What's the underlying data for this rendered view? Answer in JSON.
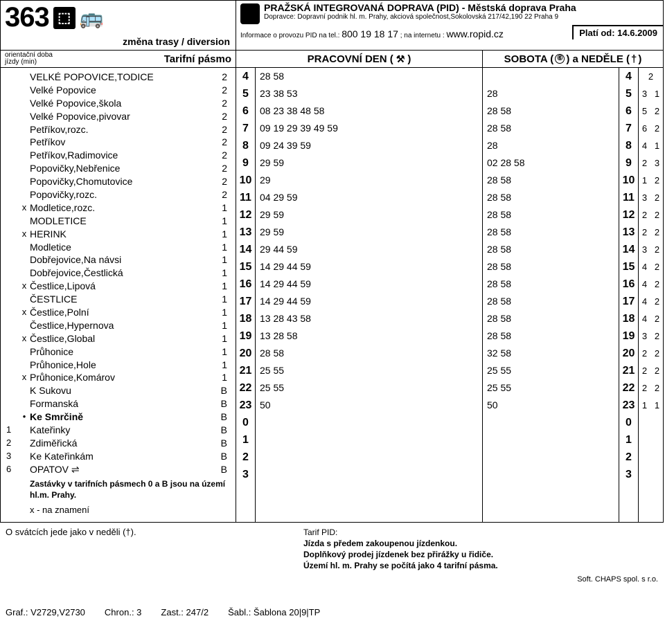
{
  "header": {
    "line_number": "363",
    "diversion": "změna trasy / diversion",
    "pid_title": "PRAŽSKÁ INTEGROVANÁ DOPRAVA (PID) - Městská doprava Praha",
    "operator": "Dopravce: Dopravní podnik hl. m. Prahy, akciová společnost,Sokolovská 217/42,190 22 Praha 9",
    "info_prefix": "Informace o provozu PID na tel.:",
    "info_phone": "800 19 18 17",
    "info_mid": "; na internetu :",
    "info_url": "www.ropid.cz",
    "valid_from": "Platí od: 14.6.2009"
  },
  "colhdr": {
    "left_small1": "orientační doba",
    "left_small2": "jízdy (min)",
    "tarif": "Tarifní pásmo",
    "work": "PRACOVNÍ DEN (",
    "work_sym": "⚒",
    "work_end": ")",
    "sat": "SOBOTA (",
    "sat_sym": "⑥",
    "sat_mid": ") a NEDĚLE (",
    "sun_sym": "†",
    "sat_end": ")"
  },
  "stops": [
    {
      "t": "",
      "m": "",
      "n": "VELKÉ POPOVICE,TODICE",
      "z": "2"
    },
    {
      "t": "",
      "m": "",
      "n": "Velké Popovice",
      "z": "2"
    },
    {
      "t": "",
      "m": "",
      "n": "Velké Popovice,škola",
      "z": "2"
    },
    {
      "t": "",
      "m": "",
      "n": "Velké Popovice,pivovar",
      "z": "2"
    },
    {
      "t": "",
      "m": "",
      "n": "Petříkov,rozc.",
      "z": "2"
    },
    {
      "t": "",
      "m": "",
      "n": "Petříkov",
      "z": "2"
    },
    {
      "t": "",
      "m": "",
      "n": "Petříkov,Radimovice",
      "z": "2"
    },
    {
      "t": "",
      "m": "",
      "n": "Popovičky,Nebřenice",
      "z": "2"
    },
    {
      "t": "",
      "m": "",
      "n": "Popovičky,Chomutovice",
      "z": "2"
    },
    {
      "t": "",
      "m": "",
      "n": "Popovičky,rozc.",
      "z": "2"
    },
    {
      "t": "",
      "m": "x",
      "n": "Modletice,rozc.",
      "z": "1"
    },
    {
      "t": "",
      "m": "",
      "n": "MODLETICE",
      "z": "1"
    },
    {
      "t": "",
      "m": "x",
      "n": "HERINK",
      "z": "1"
    },
    {
      "t": "",
      "m": "",
      "n": "Modletice",
      "z": "1"
    },
    {
      "t": "",
      "m": "",
      "n": "Dobřejovice,Na návsi",
      "z": "1"
    },
    {
      "t": "",
      "m": "",
      "n": "Dobřejovice,Čestlická",
      "z": "1"
    },
    {
      "t": "",
      "m": "x",
      "n": "Čestlice,Lipová",
      "z": "1"
    },
    {
      "t": "",
      "m": "",
      "n": "ČESTLICE",
      "z": "1"
    },
    {
      "t": "",
      "m": "x",
      "n": "Čestlice,Polní",
      "z": "1"
    },
    {
      "t": "",
      "m": "",
      "n": "Čestlice,Hypernova",
      "z": "1"
    },
    {
      "t": "",
      "m": "x",
      "n": "Čestlice,Global",
      "z": "1"
    },
    {
      "t": "",
      "m": "",
      "n": "Průhonice",
      "z": "1"
    },
    {
      "t": "",
      "m": "",
      "n": "Průhonice,Hole",
      "z": "1"
    },
    {
      "t": "",
      "m": "x",
      "n": "Průhonice,Komárov",
      "z": "1"
    },
    {
      "t": "",
      "m": "",
      "n": "K Sukovu",
      "z": "B"
    },
    {
      "t": "",
      "m": "",
      "n": "Formanská",
      "z": "B"
    },
    {
      "t": "",
      "m": "•",
      "n": "Ke Smrčině",
      "z": "B",
      "b": true
    },
    {
      "t": "1",
      "m": "",
      "n": "Kateřinky",
      "z": "B"
    },
    {
      "t": "2",
      "m": "",
      "n": "Zdiměřická",
      "z": "B"
    },
    {
      "t": "3",
      "m": "",
      "n": "Ke Kateřinkám",
      "z": "B"
    },
    {
      "t": "6",
      "m": "",
      "n": "OPATOV  ⇌",
      "z": "B"
    }
  ],
  "stop_note": "Zastávky v tarifních pásmech 0 a B jsou na území hl.m. Prahy.",
  "stop_note2": "x - na znamení",
  "hours": [
    "4",
    "5",
    "6",
    "7",
    "8",
    "9",
    "10",
    "11",
    "12",
    "13",
    "14",
    "15",
    "16",
    "17",
    "18",
    "19",
    "20",
    "21",
    "22",
    "23",
    "0",
    "1",
    "2",
    "3"
  ],
  "work_min": [
    "28 58",
    "23 38 53",
    "08 23 38 48 58",
    "09 19 29 39 49 59",
    "09 24 39 59",
    "29 59",
    "29",
    "04 29 59",
    "29 59",
    "29 59",
    "29 44 59",
    "14 29 44 59",
    "14 29 44 59",
    "14 29 44 59",
    "13 28 43 58",
    "13 28 58",
    "28 58",
    "25 55",
    "25 55",
    "50",
    "",
    "",
    "",
    ""
  ],
  "sat_min": [
    "",
    "28",
    "28 58",
    "28 58",
    "28",
    "02 28 58",
    "28 58",
    "28 58",
    "28 58",
    "28 58",
    "28 58",
    "28 58",
    "28 58",
    "28 58",
    "28 58",
    "28 58",
    "32 58",
    "25 55",
    "25 55",
    "50",
    "",
    "",
    "",
    ""
  ],
  "bp": [
    "2",
    "3   1",
    "5   2",
    "6   2",
    "4   1",
    "2   3",
    "1   2",
    "3   2",
    "2   2",
    "2   2",
    "3   2",
    "4   2",
    "4   2",
    "4   2",
    "4   2",
    "3   2",
    "2   2",
    "2   2",
    "2   2",
    "1   1",
    "",
    "",
    "",
    ""
  ],
  "tarif_notes": {
    "t0": "Tarif PID:",
    "t1": "Jízda s předem zakoupenou jízdenkou.",
    "t2": "Doplňkový prodej jízdenek bez přirážky u řidiče.",
    "t3": "Území hl. m. Prahy se počítá jako 4 tarifní pásma."
  },
  "below": "O svátcích jede jako v neděli (†).",
  "soft": "Soft. CHAPS spol. s r.o.",
  "footer": {
    "graf": "Graf.: V2729,V2730",
    "chron": "Chron.: 3",
    "zast": "Zast.: 247/2",
    "sabl": "Šabl.: Šablona 20|9|TP"
  }
}
